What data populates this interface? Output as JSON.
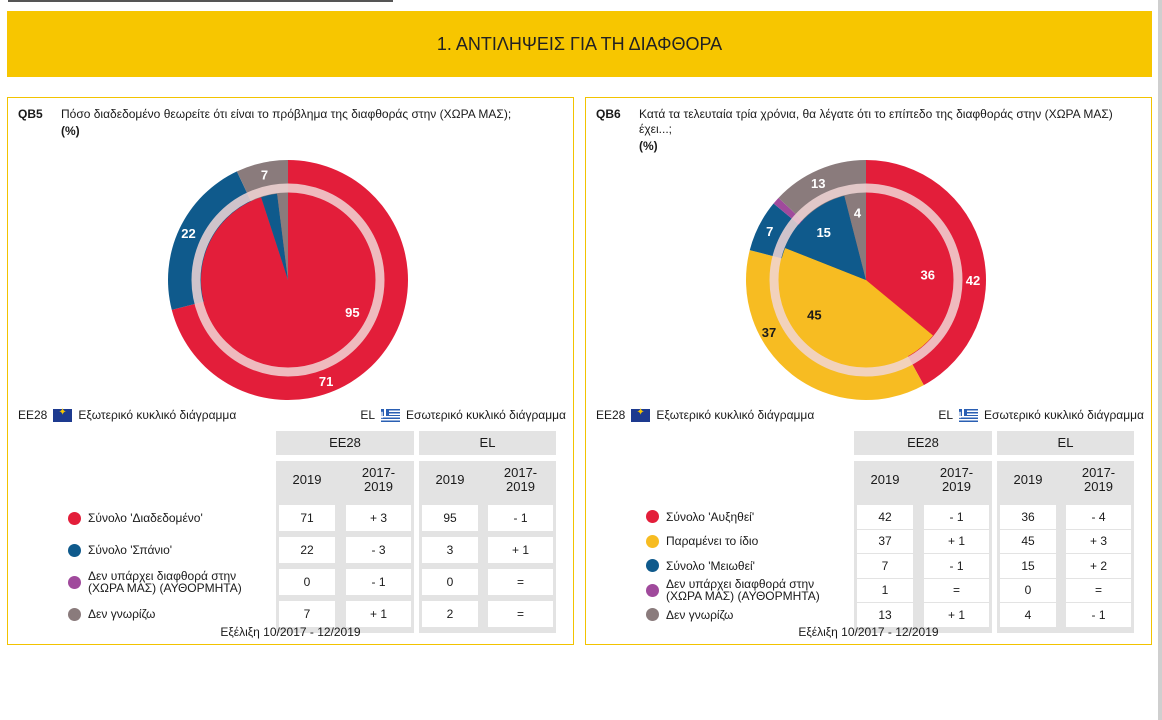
{
  "section_title": "1. ΑΝΤΙΛΗΨΕΙΣ ΓΙΑ ΤΗ ΔΙΑΦΘΟΡΑ",
  "legend": {
    "eu_code": "ΕΕ28",
    "eu_label": "Εξωτερικό κυκλικό διάγραμμα",
    "gr_code": "EL",
    "gr_label": "Εσωτερικό κυκλικό διάγραμμα"
  },
  "table_headers": {
    "group_eu": "ΕΕ28",
    "group_el": "EL",
    "col_year": "2019",
    "col_change": "2017-\n2019"
  },
  "footer": "Εξέλιξη 10/2017 - 12/2019",
  "colors": {
    "red": "#e31e3a",
    "blue": "#0f5a8c",
    "yellow": "#f7bc22",
    "purple": "#a04a9c",
    "gray": "#8a7b7c",
    "accent": "#f7c600"
  },
  "chart_data": [
    {
      "type": "pie",
      "code": "QB5",
      "title": "Πόσο διαδεδομένο θεωρείτε ότι είναι το πρόβλημα της διαφθοράς στην (ΧΩΡΑ ΜΑΣ);",
      "unit": "(%)",
      "categories": [
        "Σύνολο 'Διαδεδομένο'",
        "Σύνολο 'Σπάνιο'",
        "Δεν υπάρχει διαφθορά στην (ΧΩΡΑ ΜΑΣ) (ΑΥΘΟΡΜΗΤΑ)",
        "Δεν γνωρίζω"
      ],
      "series": [
        {
          "name": "ΕΕ28",
          "ring": "outer",
          "values": [
            71,
            22,
            0,
            7
          ],
          "changes": [
            "+ 3",
            "- 3",
            "- 1",
            "+ 1"
          ]
        },
        {
          "name": "EL",
          "ring": "inner",
          "values": [
            95,
            3,
            0,
            2
          ],
          "changes": [
            "- 1",
            "+ 1",
            "=",
            "="
          ]
        }
      ]
    },
    {
      "type": "pie",
      "code": "QB6",
      "title": "Κατά τα τελευταία τρία χρόνια, θα λέγατε ότι το επίπεδο της διαφθοράς στην (ΧΩΡΑ ΜΑΣ) έχει...;",
      "unit": "(%)",
      "categories": [
        "Σύνολο 'Αυξηθεί'",
        "Παραμένει το ίδιο",
        "Σύνολο 'Μειωθεί'",
        "Δεν υπάρχει διαφθορά στην (ΧΩΡΑ ΜΑΣ) (ΑΥΘΟΡΜΗΤΑ)",
        "Δεν γνωρίζω"
      ],
      "series": [
        {
          "name": "ΕΕ28",
          "ring": "outer",
          "values": [
            42,
            37,
            7,
            1,
            13
          ],
          "changes": [
            "- 1",
            "+ 1",
            "- 1",
            "=",
            "+ 1"
          ]
        },
        {
          "name": "EL",
          "ring": "inner",
          "values": [
            36,
            45,
            15,
            0,
            4
          ],
          "changes": [
            "- 4",
            "+ 3",
            "+ 2",
            "=",
            "- 1"
          ]
        }
      ]
    }
  ]
}
